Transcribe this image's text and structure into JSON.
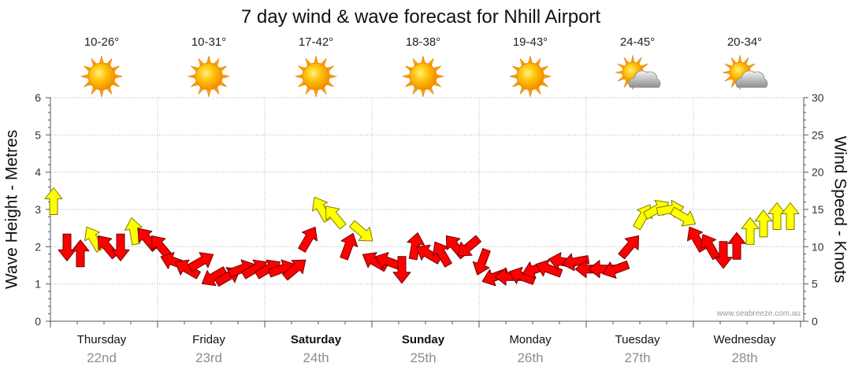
{
  "chart_data": {
    "type": "scatter",
    "title": "7 day wind & wave forecast for Nhill Airport",
    "ylabel": "Wave Height - Metres",
    "ylim": [
      0,
      6
    ],
    "yticks": [
      "0",
      "1",
      "2",
      "3",
      "4",
      "5",
      "6"
    ],
    "y2label": "Wind Speed - Knots",
    "y2lim": [
      0,
      30
    ],
    "y2ticks": [
      "0",
      "5",
      "10",
      "15",
      "20",
      "25",
      "30"
    ],
    "grid": true,
    "days": [
      {
        "day": "Thursday",
        "date": "22nd",
        "bold": false,
        "temp": "10-26°",
        "icon": "sunny-icon",
        "wind": [
          {
            "hour": 0,
            "knots": 16,
            "dir": 0,
            "color": "#ffff00"
          },
          {
            "hour": 3,
            "knots": 10,
            "dir": 180,
            "color": "#ff0000"
          },
          {
            "hour": 6,
            "knots": 9,
            "dir": 0,
            "color": "#ff0000"
          },
          {
            "hour": 9,
            "knots": 11,
            "dir": 330,
            "color": "#ffff00"
          },
          {
            "hour": 12,
            "knots": 10,
            "dir": 320,
            "color": "#ff0000"
          },
          {
            "hour": 15,
            "knots": 10,
            "dir": 180,
            "color": "#ff0000"
          },
          {
            "hour": 18,
            "knots": 12,
            "dir": 350,
            "color": "#ffff00"
          },
          {
            "hour": 21,
            "knots": 11,
            "dir": 320,
            "color": "#ff0000"
          }
        ]
      },
      {
        "day": "Friday",
        "date": "23rd",
        "bold": false,
        "temp": "10-31°",
        "icon": "sunny-icon",
        "wind": [
          {
            "hour": 0,
            "knots": 10,
            "dir": 320,
            "color": "#ff0000"
          },
          {
            "hour": 3,
            "knots": 8,
            "dir": 290,
            "color": "#ff0000"
          },
          {
            "hour": 6,
            "knots": 7,
            "dir": 300,
            "color": "#ff0000"
          },
          {
            "hour": 9,
            "knots": 8,
            "dir": 60,
            "color": "#ff0000"
          },
          {
            "hour": 12,
            "knots": 6,
            "dir": 240,
            "color": "#ff0000"
          },
          {
            "hour": 15,
            "knots": 6,
            "dir": 60,
            "color": "#ff0000"
          },
          {
            "hour": 18,
            "knots": 7,
            "dir": 70,
            "color": "#ff0000"
          },
          {
            "hour": 21,
            "knots": 7,
            "dir": 60,
            "color": "#ff0000"
          }
        ]
      },
      {
        "day": "Saturday",
        "date": "24th",
        "bold": true,
        "temp": "17-42°",
        "icon": "sunny-icon",
        "wind": [
          {
            "hour": 0,
            "knots": 7,
            "dir": 60,
            "color": "#ff0000"
          },
          {
            "hour": 3,
            "knots": 7,
            "dir": 70,
            "color": "#ff0000"
          },
          {
            "hour": 6,
            "knots": 7,
            "dir": 50,
            "color": "#ff0000"
          },
          {
            "hour": 9,
            "knots": 11,
            "dir": 30,
            "color": "#ff0000"
          },
          {
            "hour": 12,
            "knots": 15,
            "dir": 330,
            "color": "#ffff00"
          },
          {
            "hour": 15,
            "knots": 14,
            "dir": 320,
            "color": "#ffff00"
          },
          {
            "hour": 18,
            "knots": 10,
            "dir": 20,
            "color": "#ff0000"
          },
          {
            "hour": 21,
            "knots": 12,
            "dir": 130,
            "color": "#ffff00"
          }
        ]
      },
      {
        "day": "Sunday",
        "date": "25th",
        "bold": true,
        "temp": "18-38°",
        "icon": "sunny-icon",
        "wind": [
          {
            "hour": 0,
            "knots": 8,
            "dir": 300,
            "color": "#ff0000"
          },
          {
            "hour": 3,
            "knots": 8,
            "dir": 290,
            "color": "#ff0000"
          },
          {
            "hour": 6,
            "knots": 7,
            "dir": 180,
            "color": "#ff0000"
          },
          {
            "hour": 9,
            "knots": 10,
            "dir": 10,
            "color": "#ff0000"
          },
          {
            "hour": 12,
            "knots": 9,
            "dir": 300,
            "color": "#ff0000"
          },
          {
            "hour": 15,
            "knots": 9,
            "dir": 330,
            "color": "#ff0000"
          },
          {
            "hour": 18,
            "knots": 10,
            "dir": 320,
            "color": "#ff0000"
          },
          {
            "hour": 21,
            "knots": 10,
            "dir": 230,
            "color": "#ff0000"
          }
        ]
      },
      {
        "day": "Monday",
        "date": "26th",
        "bold": false,
        "temp": "19-43°",
        "icon": "sunny-icon",
        "wind": [
          {
            "hour": 0,
            "knots": 8,
            "dir": 200,
            "color": "#ff0000"
          },
          {
            "hour": 3,
            "knots": 6,
            "dir": 250,
            "color": "#ff0000"
          },
          {
            "hour": 6,
            "knots": 6,
            "dir": 270,
            "color": "#ff0000"
          },
          {
            "hour": 9,
            "knots": 6,
            "dir": 290,
            "color": "#ff0000"
          },
          {
            "hour": 12,
            "knots": 7,
            "dir": 250,
            "color": "#ff0000"
          },
          {
            "hour": 15,
            "knots": 7,
            "dir": 290,
            "color": "#ff0000"
          },
          {
            "hour": 18,
            "knots": 8,
            "dir": 280,
            "color": "#ff0000"
          },
          {
            "hour": 21,
            "knots": 8,
            "dir": 260,
            "color": "#ff0000"
          }
        ]
      },
      {
        "day": "Tuesday",
        "date": "27th",
        "bold": false,
        "temp": "24-45°",
        "icon": "partly-cloudy-icon",
        "wind": [
          {
            "hour": 0,
            "knots": 7,
            "dir": 270,
            "color": "#ff0000"
          },
          {
            "hour": 3,
            "knots": 7,
            "dir": 270,
            "color": "#ff0000"
          },
          {
            "hour": 6,
            "knots": 7,
            "dir": 250,
            "color": "#ff0000"
          },
          {
            "hour": 9,
            "knots": 10,
            "dir": 40,
            "color": "#ff0000"
          },
          {
            "hour": 12,
            "knots": 14,
            "dir": 30,
            "color": "#ffff00"
          },
          {
            "hour": 15,
            "knots": 15,
            "dir": 60,
            "color": "#ffff00"
          },
          {
            "hour": 18,
            "knots": 15,
            "dir": 80,
            "color": "#ffff00"
          },
          {
            "hour": 21,
            "knots": 14,
            "dir": 120,
            "color": "#ffff00"
          }
        ]
      },
      {
        "day": "Wednesday",
        "date": "28th",
        "bold": false,
        "temp": "20-34°",
        "icon": "partly-cloudy-icon",
        "wind": [
          {
            "hour": 0,
            "knots": 11,
            "dir": 330,
            "color": "#ff0000"
          },
          {
            "hour": 3,
            "knots": 10,
            "dir": 330,
            "color": "#ff0000"
          },
          {
            "hour": 6,
            "knots": 9,
            "dir": 180,
            "color": "#ff0000"
          },
          {
            "hour": 9,
            "knots": 10,
            "dir": 0,
            "color": "#ff0000"
          },
          {
            "hour": 12,
            "knots": 12,
            "dir": 0,
            "color": "#ffff00"
          },
          {
            "hour": 15,
            "knots": 13,
            "dir": 0,
            "color": "#ffff00"
          },
          {
            "hour": 18,
            "knots": 14,
            "dir": 0,
            "color": "#ffff00"
          },
          {
            "hour": 21,
            "knots": 14,
            "dir": 0,
            "color": "#ffff00"
          }
        ]
      }
    ]
  },
  "watermark": "www.seabreeze.com.au",
  "colors": {
    "red_arrow": "#ff0000",
    "yellow_arrow": "#ffff00",
    "date_text": "#8c8c8c"
  }
}
